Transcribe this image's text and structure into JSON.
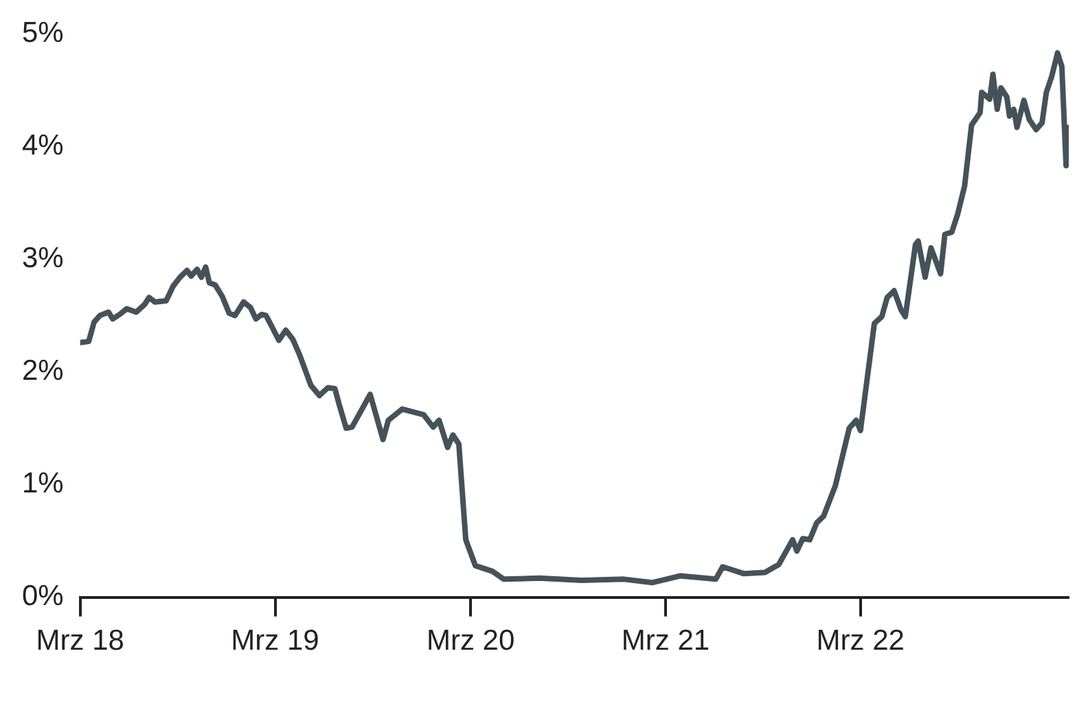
{
  "chart_data": {
    "type": "line",
    "x": [
      "2018-03-01",
      "2018-03-17",
      "2018-03-27",
      "2018-04-07",
      "2018-04-23",
      "2018-05-01",
      "2018-05-14",
      "2018-05-27",
      "2018-06-14",
      "2018-06-30",
      "2018-07-08",
      "2018-07-19",
      "2018-08-09",
      "2018-08-22",
      "2018-09-04",
      "2018-09-17",
      "2018-09-25",
      "2018-10-06",
      "2018-10-14",
      "2018-10-22",
      "2018-10-29",
      "2018-11-09",
      "2018-11-22",
      "2018-12-05",
      "2018-12-16",
      "2019-01-01",
      "2019-01-14",
      "2019-01-24",
      "2019-02-04",
      "2019-02-12",
      "2019-02-22",
      "2019-03-08",
      "2019-03-21",
      "2019-04-03",
      "2019-04-16",
      "2019-05-07",
      "2019-05-23",
      "2019-06-08",
      "2019-06-21",
      "2019-06-29",
      "2019-07-12",
      "2019-07-23",
      "2019-08-26",
      "2019-09-19",
      "2019-09-29",
      "2019-10-25",
      "2019-12-04",
      "2019-12-22",
      "2020-01-02",
      "2020-01-18",
      "2020-01-28",
      "2020-02-08",
      "2020-02-21",
      "2020-03-10",
      "2020-04-11",
      "2020-05-02",
      "2020-07-08",
      "2020-09-25",
      "2020-12-13",
      "2021-02-04",
      "2021-03-29",
      "2021-06-03",
      "2021-06-16",
      "2021-07-25",
      "2021-09-03",
      "2021-09-29",
      "2021-10-25",
      "2021-11-02",
      "2021-11-13",
      "2021-11-26",
      "2021-12-09",
      "2021-12-22",
      "2022-01-13",
      "2022-02-08",
      "2022-02-21",
      "2022-03-01",
      "2022-03-27",
      "2022-04-10",
      "2022-04-20",
      "2022-05-03",
      "2022-05-16",
      "2022-05-24",
      "2022-06-12",
      "2022-06-17",
      "2022-06-30",
      "2022-07-11",
      "2022-07-29",
      "2022-08-06",
      "2022-08-19",
      "2022-08-30",
      "2022-09-12",
      "2022-09-25",
      "2022-10-11",
      "2022-10-14",
      "2022-10-29",
      "2022-11-04",
      "2022-11-12",
      "2022-11-19",
      "2022-11-30",
      "2022-12-05",
      "2022-12-13",
      "2022-12-19",
      "2023-01-01",
      "2023-01-11",
      "2023-01-24",
      "2023-02-04",
      "2023-02-12",
      "2023-02-22",
      "2023-03-05",
      "2023-03-13",
      "2023-03-21",
      "2023-03-26"
    ],
    "series": [
      {
        "color": "#46525a",
        "values": [
          2.26,
          2.27,
          2.44,
          2.5,
          2.53,
          2.47,
          2.51,
          2.56,
          2.53,
          2.6,
          2.66,
          2.62,
          2.63,
          2.76,
          2.84,
          2.9,
          2.85,
          2.91,
          2.84,
          2.93,
          2.79,
          2.77,
          2.67,
          2.52,
          2.5,
          2.62,
          2.57,
          2.47,
          2.51,
          2.5,
          2.41,
          2.28,
          2.37,
          2.29,
          2.15,
          1.88,
          1.79,
          1.86,
          1.85,
          1.71,
          1.5,
          1.51,
          1.8,
          1.4,
          1.57,
          1.67,
          1.62,
          1.51,
          1.57,
          1.33,
          1.44,
          1.36,
          0.51,
          0.28,
          0.23,
          0.16,
          0.17,
          0.15,
          0.16,
          0.13,
          0.19,
          0.16,
          0.27,
          0.21,
          0.22,
          0.29,
          0.51,
          0.41,
          0.52,
          0.51,
          0.66,
          0.72,
          0.99,
          1.5,
          1.57,
          1.48,
          2.43,
          2.49,
          2.66,
          2.72,
          2.55,
          2.49,
          3.13,
          3.16,
          2.84,
          3.1,
          2.87,
          3.22,
          3.24,
          3.4,
          3.65,
          4.19,
          4.3,
          4.48,
          4.42,
          4.64,
          4.33,
          4.52,
          4.44,
          4.27,
          4.33,
          4.17,
          4.41,
          4.24,
          4.15,
          4.21,
          4.48,
          4.62,
          4.83,
          4.71,
          3.83,
          4.17
        ]
      }
    ],
    "xlim": [
      "2018-03-01",
      "2023-03-26"
    ],
    "xticks": [
      {
        "value": "2018-03-01",
        "label": "Mrz 18"
      },
      {
        "value": "2019-03-01",
        "label": "Mrz 19"
      },
      {
        "value": "2020-03-01",
        "label": "Mrz 20"
      },
      {
        "value": "2021-03-01",
        "label": "Mrz 21"
      },
      {
        "value": "2022-03-01",
        "label": "Mrz 22"
      }
    ],
    "ylim": [
      0,
      5
    ],
    "yticks": [
      {
        "value": 0,
        "label": "0%"
      },
      {
        "value": 1,
        "label": "1%"
      },
      {
        "value": 2,
        "label": "2%"
      },
      {
        "value": 3,
        "label": "3%"
      },
      {
        "value": 4,
        "label": "4%"
      },
      {
        "value": 5,
        "label": "5%"
      }
    ],
    "grid": false,
    "legend": false,
    "marker": "none",
    "line_style": "solid"
  }
}
